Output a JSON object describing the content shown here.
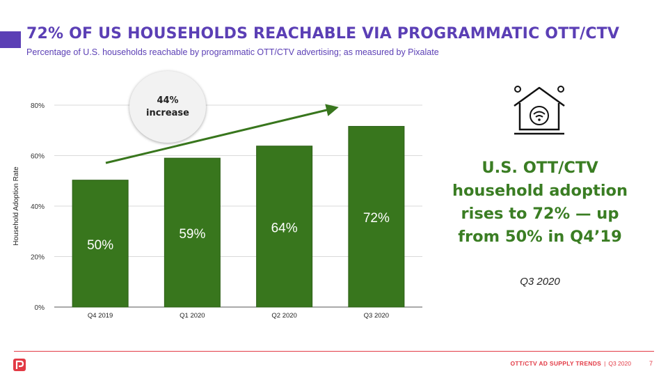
{
  "header": {
    "title": "72% OF US HOUSEHOLDS REACHABLE VIA PROGRAMMATIC OTT/CTV",
    "subtitle": "Percentage of U.S. households reachable by programmatic OTT/CTV advertising; as measured by Pixalate"
  },
  "callout": {
    "line1": "44%",
    "line2": "increase"
  },
  "sidebar": {
    "headline": "U.S. OTT/CTV household adoption rises to 72% — up from 50% in Q4’19",
    "period": "Q3 2020",
    "icon": "smart-home-wifi-icon"
  },
  "footer": {
    "section": "OTT/CTV AD SUPPLY TRENDS",
    "separator": "|",
    "period": "Q3 2020",
    "page": "7",
    "logo": "pixalate-logo"
  },
  "colors": {
    "title": "#5b3fb5",
    "bar": "#38761d",
    "headline": "#3a7d23",
    "footer": "#e23a45"
  },
  "chart_data": {
    "type": "bar",
    "categories": [
      "Q4 2019",
      "Q1 2020",
      "Q2 2020",
      "Q3 2020"
    ],
    "values": [
      50.3,
      59,
      63.8,
      71.6
    ],
    "data_labels": [
      "50%",
      "59%",
      "64%",
      "72%"
    ],
    "ylabel": "Household Adoption Rate",
    "ylim": [
      0,
      80
    ],
    "yticks": [
      0,
      20,
      40,
      60,
      80
    ],
    "ytick_labels": [
      "0%",
      "20%",
      "40%",
      "60%",
      "80%"
    ],
    "grid": true,
    "trend_arrow": true
  }
}
